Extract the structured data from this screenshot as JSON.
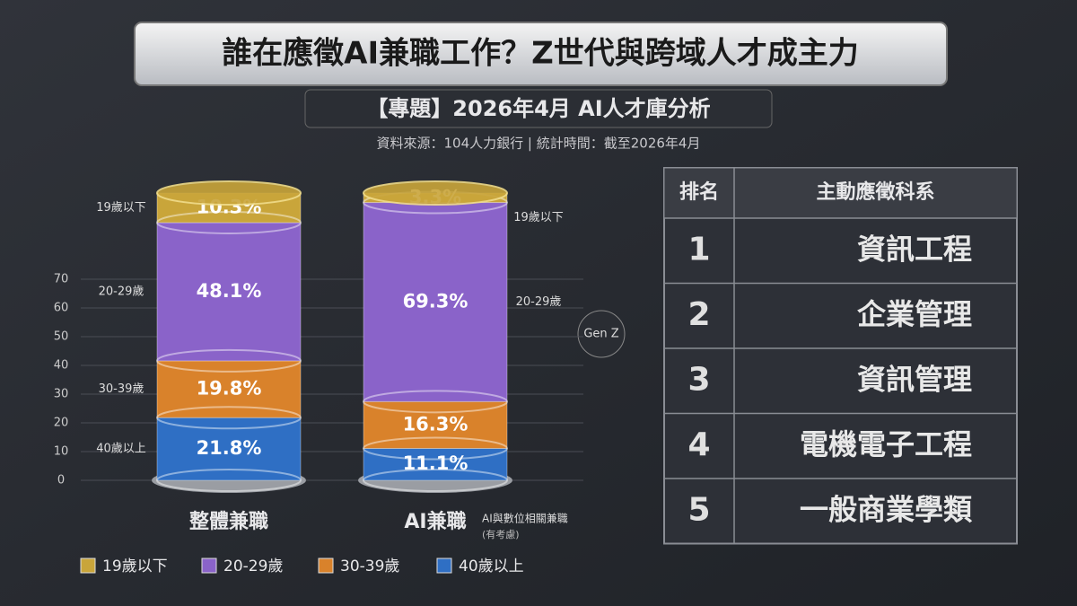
{
  "header": {
    "title": "誰在應徵AI兼職工作？Z世代與跨域人才成主力",
    "subtitle": "【專題】2026年4月 AI人才庫分析",
    "source": "資料來源：104人力銀行 | 統計時間：截至2026年4月"
  },
  "chart_data": {
    "type": "bar",
    "stacked": true,
    "categories": [
      "整體兼職",
      "AI兼職"
    ],
    "category_note": [
      "AI與數位相關兼職",
      "(有考慮)"
    ],
    "annotation": "Gen Z",
    "series": [
      {
        "name": "40歲以上",
        "color": "#2f6fc4",
        "values": [
          21.8,
          11.1
        ],
        "value_labels": [
          "21.8%",
          "11.1%"
        ]
      },
      {
        "name": "30-39歲",
        "color": "#d9822b",
        "values": [
          19.8,
          16.3
        ],
        "value_labels": [
          "19.8%",
          "16.3%"
        ]
      },
      {
        "name": "20-29歲",
        "color": "#8a63c9",
        "values": [
          48.1,
          69.3
        ],
        "value_labels": [
          "48.1%",
          "69.3%"
        ]
      },
      {
        "name": "19歲以下",
        "color": "#c9a53a",
        "values": [
          10.3,
          3.3
        ],
        "value_labels": [
          "10.3%",
          "3.3%"
        ]
      }
    ],
    "ylim": [
      0,
      100
    ],
    "yticks": [
      0,
      10,
      20,
      30,
      40,
      50,
      60,
      70
    ],
    "grid": true
  },
  "table": {
    "header": [
      "排名",
      "主動應徵科系"
    ],
    "rows": [
      [
        1,
        "資訊工程"
      ],
      [
        2,
        "企業管理"
      ],
      [
        3,
        "資訊管理"
      ],
      [
        4,
        "電機電子工程"
      ],
      [
        5,
        "一般商業學類"
      ]
    ]
  }
}
